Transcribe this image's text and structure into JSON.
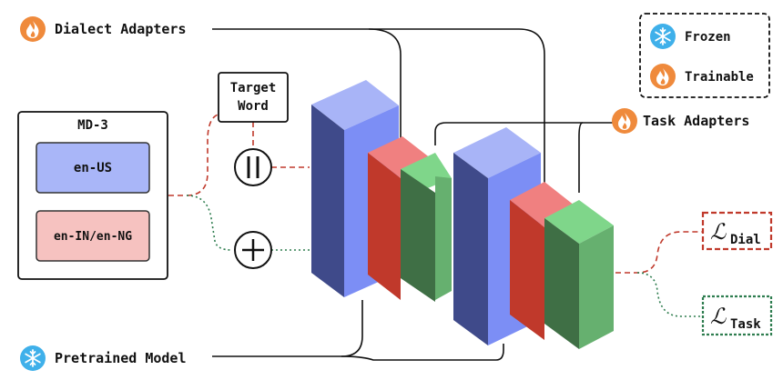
{
  "labels": {
    "dialect_adapters": "Dialect Adapters",
    "task_adapters": "Task Adapters",
    "pretrained_model": "Pretrained Model",
    "target_word_line1": "Target",
    "target_word_line2": "Word"
  },
  "md3": {
    "title": "MD-3",
    "en_us": "en-US",
    "en_in_ng": "en-IN/en-NG"
  },
  "legend": {
    "frozen": "Frozen",
    "trainable": "Trainable"
  },
  "losses": {
    "dial_script": "ℒ",
    "dial_sub": "Dial",
    "task_script": "ℒ",
    "task_sub": "Task"
  },
  "operators": {
    "concat": "‖",
    "add": "+"
  },
  "icons": {
    "trainable_icon": "flame-icon",
    "frozen_icon": "snowflake-icon"
  },
  "colors": {
    "model_blue_front": "#3f4a8a",
    "model_blue_top": "#a8b4f7",
    "model_blue_side": "#7c8ef5",
    "dialect_red_front": "#c0392b",
    "dialect_red_top": "#f08080",
    "task_green_front": "#3f6f45",
    "task_green_top": "#7fd68a",
    "task_green_side": "#66b06f",
    "trainable_orange": "#ef8a3c",
    "frozen_blue": "#3fb0ea",
    "dashed_red": "#c0392b",
    "dotted_green": "#2e7d4f"
  }
}
